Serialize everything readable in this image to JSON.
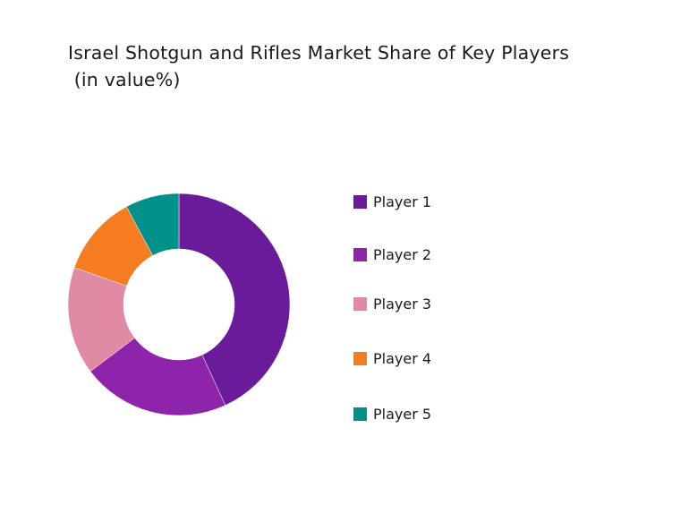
{
  "chart_data": {
    "type": "pie",
    "style": "donut",
    "title_lines": [
      "Israel Shotgun and Rifles Market Share of Key Players",
      " (in value%)"
    ],
    "categories": [
      "Player 1",
      "Player 2",
      "Player 3",
      "Player 4",
      "Player 5"
    ],
    "values": [
      44,
      22,
      16,
      12,
      8
    ],
    "colors": [
      "#6a1b9a",
      "#8e24aa",
      "#e08aa3",
      "#f57c20",
      "#00928a"
    ],
    "legend_position": "right"
  }
}
